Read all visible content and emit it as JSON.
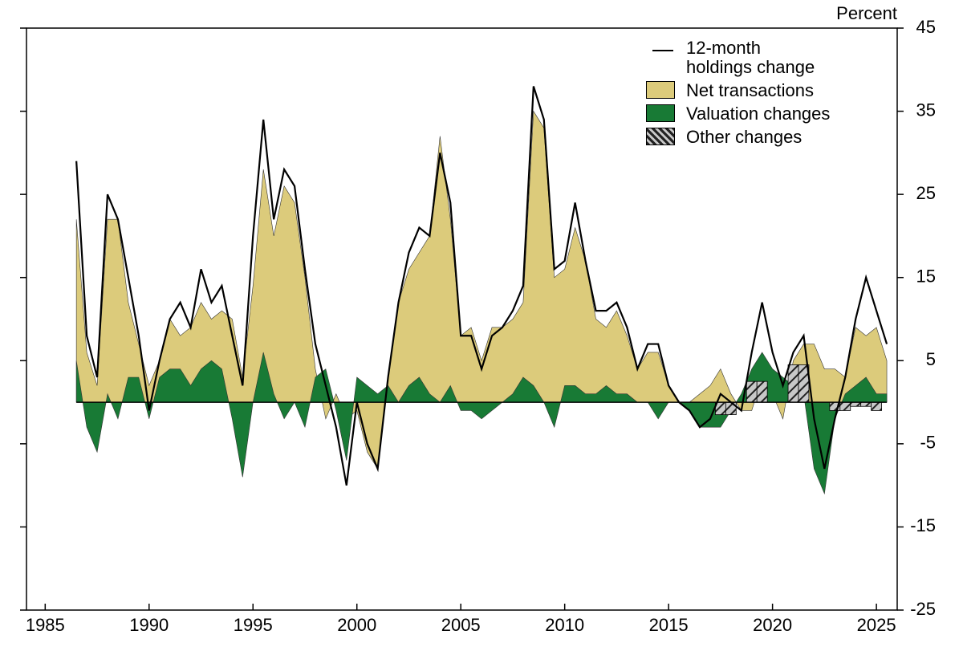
{
  "chart_data": {
    "type": "area",
    "y_axis_label": "Percent",
    "x": [
      1986.5,
      1987,
      1987.5,
      1988,
      1988.5,
      1989,
      1989.5,
      1990,
      1990.5,
      1991,
      1991.5,
      1992,
      1992.5,
      1993,
      1993.5,
      1994,
      1994.5,
      1995,
      1995.5,
      1996,
      1996.5,
      1997,
      1997.5,
      1998,
      1998.5,
      1999,
      1999.5,
      2000,
      2000.5,
      2001,
      2001.5,
      2002,
      2002.5,
      2003,
      2003.5,
      2004,
      2004.5,
      2005,
      2005.5,
      2006,
      2006.5,
      2007,
      2007.5,
      2008,
      2008.5,
      2009,
      2009.5,
      2010,
      2010.5,
      2011,
      2011.5,
      2012,
      2012.5,
      2013,
      2013.5,
      2014,
      2014.5,
      2015,
      2015.5,
      2016,
      2016.5,
      2017,
      2017.5,
      2018,
      2018.5,
      2019,
      2019.5,
      2020,
      2020.5,
      2021,
      2021.5,
      2022,
      2022.5,
      2023,
      2023.5,
      2024,
      2024.5,
      2025,
      2025.5
    ],
    "series": [
      {
        "name": "12-month holdings change",
        "kind": "line",
        "color": "#000000",
        "values": [
          29,
          8,
          3,
          25,
          22,
          15,
          8,
          -1,
          5,
          10,
          12,
          9,
          16,
          12,
          14,
          8,
          2,
          20,
          34,
          22,
          28,
          26,
          16,
          7,
          2,
          -3,
          -10,
          0,
          -5,
          -8,
          3,
          12,
          18,
          21,
          20,
          30,
          24,
          8,
          8,
          4,
          8,
          9,
          11,
          14,
          38,
          34,
          16,
          17,
          24,
          17,
          11,
          11,
          12,
          9,
          4,
          7,
          7,
          2,
          0,
          -1,
          -3,
          -2,
          1,
          0,
          -1,
          6,
          12,
          6,
          2,
          6,
          8,
          -2,
          -8,
          -2,
          3,
          10,
          15,
          11,
          7
        ]
      },
      {
        "name": "Net transactions",
        "kind": "area",
        "color": "#dccb7b",
        "values": [
          22,
          6,
          2,
          22,
          22,
          12,
          7,
          2,
          5,
          10,
          8,
          9,
          12,
          10,
          11,
          10,
          3,
          14,
          28,
          20,
          26,
          24,
          15,
          4,
          -2,
          1,
          -2,
          -1,
          -6,
          -8,
          3,
          12,
          16,
          18,
          20,
          32,
          22,
          8,
          9,
          5,
          9,
          9,
          10,
          12,
          35,
          33,
          15,
          16,
          21,
          17,
          10,
          9,
          11,
          8,
          4,
          6,
          6,
          2,
          0,
          0,
          1,
          2,
          4,
          1,
          -1,
          -1,
          3,
          1,
          -2,
          5,
          7,
          7,
          4,
          4,
          3,
          9,
          8,
          9,
          5
        ]
      },
      {
        "name": "Valuation changes",
        "kind": "area",
        "color": "#187a35",
        "values": [
          5,
          -3,
          -6,
          1,
          -2,
          3,
          3,
          -2,
          3,
          4,
          4,
          2,
          4,
          5,
          4,
          -2,
          -9,
          0,
          6,
          1,
          -2,
          0,
          -3,
          3,
          4,
          -1,
          -7,
          3,
          2,
          1,
          2,
          0,
          2,
          3,
          1,
          0,
          2,
          -1,
          -1,
          -2,
          -1,
          0,
          1,
          3,
          2,
          0,
          -3,
          2,
          2,
          1,
          1,
          2,
          1,
          1,
          0,
          0,
          -2,
          0,
          0,
          -1,
          -3,
          -3,
          -3,
          -1,
          1,
          4,
          6,
          4,
          3,
          2,
          1,
          -8,
          -11,
          -2,
          1,
          2,
          3,
          1,
          1
        ]
      },
      {
        "name": "Other changes",
        "kind": "hatch",
        "color": "#b0b0b0",
        "values": [
          0,
          0,
          0,
          0,
          0,
          0,
          0,
          0,
          0,
          0,
          0,
          0,
          0,
          0,
          0,
          0,
          0,
          0,
          0,
          0,
          0,
          0,
          0,
          0,
          0,
          0,
          0,
          0,
          0,
          0,
          0,
          0,
          0,
          0,
          0,
          0,
          0,
          0,
          0,
          0,
          0,
          0,
          0,
          0,
          0,
          0,
          0,
          0,
          0,
          0,
          0,
          0,
          0,
          0,
          0,
          0,
          0,
          0,
          0,
          0,
          0,
          0,
          -1.5,
          -1.5,
          0,
          2.5,
          2.5,
          0,
          0,
          4.5,
          4.5,
          0,
          0,
          -1,
          -1,
          -0.5,
          -0.5,
          -1,
          0
        ]
      }
    ],
    "xlim": [
      1984.1,
      2026
    ],
    "xticks": [
      1985,
      1990,
      1995,
      2000,
      2005,
      2010,
      2015,
      2020,
      2025
    ],
    "ylim": [
      -25,
      45
    ],
    "yticks": [
      45,
      35,
      25,
      15,
      5,
      -5,
      -15,
      -25
    ],
    "legend": "top-right"
  }
}
